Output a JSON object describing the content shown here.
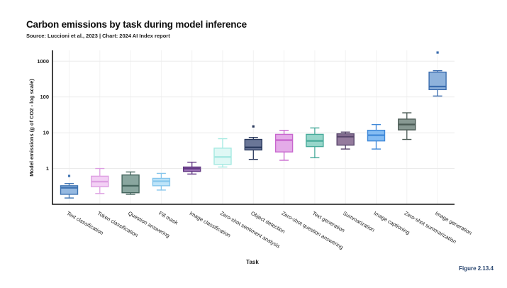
{
  "header": {
    "title": "Carbon emissions by task during model inference",
    "subtitle": "Source: Luccioni et al., 2023 | Chart: 2024 AI Index report"
  },
  "footer": {
    "figure_label": "Figure 2.13.4",
    "figure_label_color": "#26436e"
  },
  "chart_data": {
    "type": "boxplot",
    "title": "Carbon emissions by task during model inference",
    "subtitle": "Source: Luccioni et al., 2023 | Chart: 2024 AI Index report",
    "xlabel": "Task",
    "ylabel": "Model emissions (g of CO2 - log scale)",
    "y_scale": "log",
    "units": "g of CO2",
    "y_ticks": [
      1,
      10,
      100,
      1000
    ],
    "ylim": [
      0.1,
      2000
    ],
    "grid": true,
    "legend": "none",
    "categories": [
      "Text classification",
      "Token classification",
      "Question answering",
      "Fill mask",
      "Image classification",
      "Zero-shot sentiment analysis",
      "Object detection",
      "Zero-shot question answering",
      "Text generation",
      "Summarization",
      "Image captioning",
      "Zero-shot summarization",
      "Image generation"
    ],
    "series": [
      {
        "category": "Text classification",
        "low": 0.15,
        "q1": 0.19,
        "median": 0.29,
        "q3": 0.33,
        "high": 0.38,
        "outliers": [
          0.62
        ],
        "fill": "#8cb3de",
        "stroke": "#3f74b2"
      },
      {
        "category": "Token classification",
        "low": 0.2,
        "q1": 0.31,
        "median": 0.43,
        "q3": 0.61,
        "high": 1.0,
        "outliers": [],
        "fill": "#f2ccf4",
        "stroke": "#dd9fe2"
      },
      {
        "category": "Question answering",
        "low": 0.19,
        "q1": 0.21,
        "median": 0.33,
        "q3": 0.66,
        "high": 0.8,
        "outliers": [],
        "fill": "#7f9e97",
        "stroke": "#44655d"
      },
      {
        "category": "Fill mask",
        "low": 0.25,
        "q1": 0.33,
        "median": 0.44,
        "q3": 0.53,
        "high": 0.73,
        "outliers": [],
        "fill": "#b8e2f8",
        "stroke": "#86c6ec"
      },
      {
        "category": "Image classification",
        "low": 0.7,
        "q1": 0.83,
        "median": 1.0,
        "q3": 1.1,
        "high": 1.5,
        "outliers": [],
        "fill": "#9667b2",
        "stroke": "#643a85"
      },
      {
        "category": "Zero-shot sentiment analysis",
        "low": 1.1,
        "q1": 1.3,
        "median": 2.1,
        "q3": 3.7,
        "high": 6.8,
        "outliers": [],
        "fill": "#dcf7f4",
        "stroke": "#a5e9e1"
      },
      {
        "category": "Object detection",
        "low": 1.8,
        "q1": 3.3,
        "median": 3.9,
        "q3": 6.5,
        "high": 7.4,
        "outliers": [
          15
        ],
        "fill": "#5d6a8e",
        "stroke": "#2b3a5e"
      },
      {
        "category": "Zero-shot question answering",
        "low": 1.7,
        "q1": 2.9,
        "median": 6.2,
        "q3": 9.0,
        "high": 11.6,
        "outliers": [],
        "fill": "#e2a4e6",
        "stroke": "#c866ce"
      },
      {
        "category": "Text generation",
        "low": 2.0,
        "q1": 4.1,
        "median": 5.9,
        "q3": 9.0,
        "high": 13.6,
        "outliers": [],
        "fill": "#8ed2c6",
        "stroke": "#48ab9b"
      },
      {
        "category": "Summarization",
        "low": 3.5,
        "q1": 4.5,
        "median": 7.8,
        "q3": 9.3,
        "high": 10.4,
        "outliers": [],
        "fill": "#8b7095",
        "stroke": "#57456b"
      },
      {
        "category": "Image captioning",
        "low": 3.5,
        "q1": 5.9,
        "median": 8.5,
        "q3": 11.7,
        "high": 16.9,
        "outliers": [],
        "fill": "#7ab6f2",
        "stroke": "#3f88d8"
      },
      {
        "category": "Zero-shot summarization",
        "low": 6.5,
        "q1": 12,
        "median": 17,
        "q3": 24,
        "high": 36,
        "outliers": [],
        "fill": "#7d8f89",
        "stroke": "#4a5a54"
      },
      {
        "category": "Image generation",
        "low": 106,
        "q1": 160,
        "median": 195,
        "q3": 493,
        "high": 540,
        "outliers": [
          1740
        ],
        "fill": "#84abd9",
        "stroke": "#3a6cae"
      }
    ]
  }
}
